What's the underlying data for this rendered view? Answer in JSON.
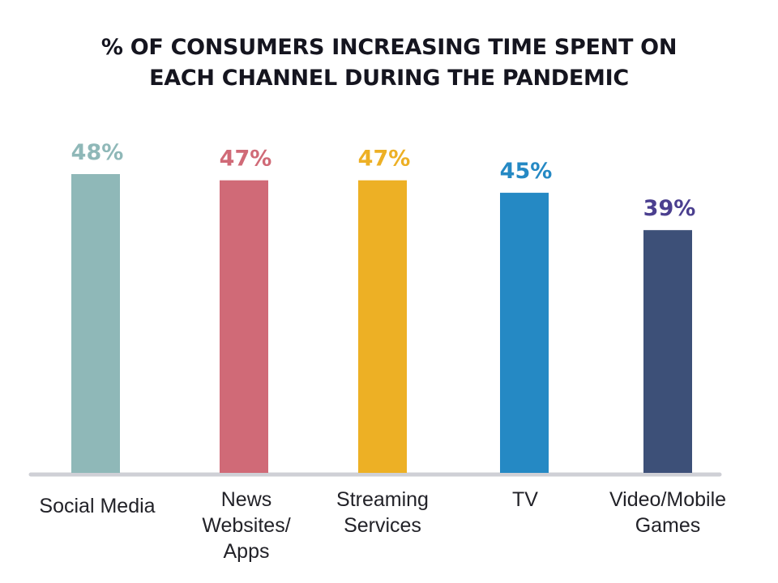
{
  "chart_data": {
    "type": "bar",
    "title_lines": [
      "% OF CONSUMERS INCREASING TIME SPENT ON",
      "EACH CHANNEL DURING THE PANDEMIC"
    ],
    "categories": [
      "Social Media",
      "News Websites/ Apps",
      "Streaming Services",
      "TV",
      "Video/Mobile Games"
    ],
    "category_label_lines": [
      [
        "Social Media"
      ],
      [
        "News",
        "Websites/",
        "Apps"
      ],
      [
        "Streaming",
        "Services"
      ],
      [
        "TV"
      ],
      [
        "Video/Mobile",
        "Games"
      ]
    ],
    "values": [
      48,
      47,
      47,
      45,
      39
    ],
    "data_labels": [
      "48%",
      "47%",
      "47%",
      "45%",
      "39%"
    ],
    "colors": [
      "#8fb8b8",
      "#d06a77",
      "#edb025",
      "#2589c4",
      "#3d5078"
    ],
    "label_colors": [
      "#8fb8b8",
      "#d06a77",
      "#edb025",
      "#2589c4",
      "#4b3f8f"
    ],
    "xlabel": "",
    "ylabel": "",
    "ylim": [
      0,
      48
    ],
    "grid": false,
    "legend": "none",
    "y_axis_visible": false
  }
}
